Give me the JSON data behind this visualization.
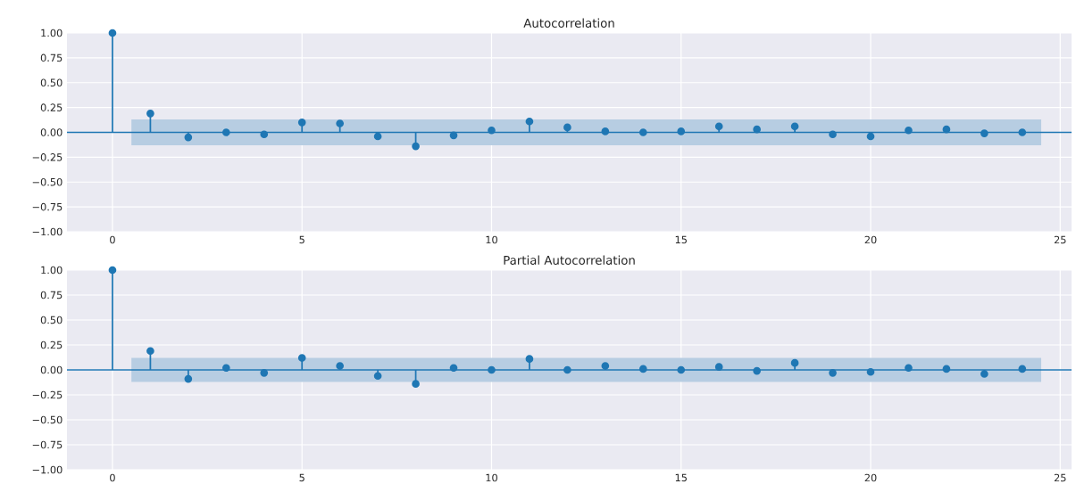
{
  "chart_data": [
    {
      "type": "lollipop",
      "title": "Autocorrelation",
      "xlim": [
        -1.2,
        25.3
      ],
      "ylim": [
        -1,
        1
      ],
      "xticks": [
        0,
        5,
        10,
        15,
        20,
        25
      ],
      "yticks": [
        {
          "value": -1,
          "label": "−1.00"
        },
        {
          "value": -0.75,
          "label": "−0.75"
        },
        {
          "value": -0.5,
          "label": "−0.50"
        },
        {
          "value": -0.25,
          "label": "−0.25"
        },
        {
          "value": 0,
          "label": "0.00"
        },
        {
          "value": 0.25,
          "label": "0.25"
        },
        {
          "value": 0.5,
          "label": "0.50"
        },
        {
          "value": 0.75,
          "label": "0.75"
        },
        {
          "value": 1,
          "label": "1.00"
        }
      ],
      "grid": true,
      "marker": "circle",
      "ref_lines": [
        {
          "axis": "y",
          "value": 0,
          "color": "#1f77b4"
        }
      ],
      "series": [
        {
          "color": "#1f77b4",
          "x": [
            0,
            1,
            2,
            3,
            4,
            5,
            6,
            7,
            8,
            9,
            10,
            11,
            12,
            13,
            14,
            15,
            16,
            17,
            18,
            19,
            20,
            21,
            22,
            23,
            24
          ],
          "values": [
            1,
            0.19,
            -0.05,
            0.0,
            -0.02,
            0.1,
            0.09,
            -0.04,
            -0.14,
            -0.03,
            0.02,
            0.11,
            0.05,
            0.01,
            0.0,
            0.01,
            0.06,
            0.03,
            0.06,
            -0.02,
            -0.04,
            0.02,
            0.03,
            -0.01,
            0.0
          ]
        }
      ],
      "bands": [
        {
          "axis": "y",
          "from": -0.13,
          "to": 0.13,
          "color": "#b7cde2"
        }
      ]
    },
    {
      "type": "lollipop",
      "title": "Partial Autocorrelation",
      "xlim": [
        -1.2,
        25.3
      ],
      "ylim": [
        -1,
        1
      ],
      "xticks": [
        0,
        5,
        10,
        15,
        20,
        25
      ],
      "yticks": [
        {
          "value": -1,
          "label": "−1.00"
        },
        {
          "value": -0.75,
          "label": "−0.75"
        },
        {
          "value": -0.5,
          "label": "−0.50"
        },
        {
          "value": -0.25,
          "label": "−0.25"
        },
        {
          "value": 0,
          "label": "0.00"
        },
        {
          "value": 0.25,
          "label": "0.25"
        },
        {
          "value": 0.5,
          "label": "0.50"
        },
        {
          "value": 0.75,
          "label": "0.75"
        },
        {
          "value": 1,
          "label": "1.00"
        }
      ],
      "grid": true,
      "marker": "circle",
      "ref_lines": [
        {
          "axis": "y",
          "value": 0,
          "color": "#1f77b4"
        }
      ],
      "series": [
        {
          "color": "#1f77b4",
          "x": [
            0,
            1,
            2,
            3,
            4,
            5,
            6,
            7,
            8,
            9,
            10,
            11,
            12,
            13,
            14,
            15,
            16,
            17,
            18,
            19,
            20,
            21,
            22,
            23,
            24
          ],
          "values": [
            1,
            0.19,
            -0.09,
            0.02,
            -0.03,
            0.12,
            0.04,
            -0.06,
            -0.14,
            0.02,
            0.0,
            0.11,
            0.0,
            0.04,
            0.01,
            0.0,
            0.03,
            -0.01,
            0.07,
            -0.03,
            -0.02,
            0.02,
            0.01,
            -0.04,
            0.01
          ]
        }
      ],
      "bands": [
        {
          "axis": "y",
          "from": -0.12,
          "to": 0.12,
          "color": "#b7cde2"
        }
      ]
    }
  ]
}
